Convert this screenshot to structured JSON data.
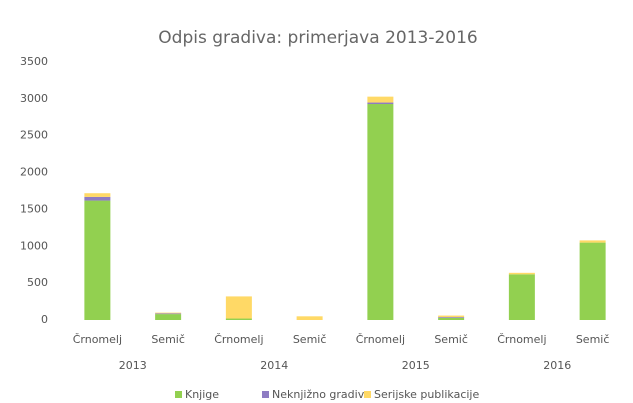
{
  "chart_data": {
    "type": "stacked_bar",
    "title": "Odpis gradiva: primerjava 2013-2016",
    "categories": [
      "Črnomelj",
      "Semič",
      "Črnomelj",
      "Semič",
      "Črnomelj",
      "Semič",
      "Črnomelj",
      "Semič"
    ],
    "groups": [
      "2013",
      "2014",
      "2015",
      "2016"
    ],
    "series": [
      {
        "name": "Knjige",
        "color": "#92d050",
        "values": [
          1620,
          80,
          20,
          0,
          2930,
          30,
          620,
          1050
        ]
      },
      {
        "name": "Neknjižno gradivo",
        "color": "#8e7cc3",
        "values": [
          50,
          10,
          0,
          0,
          20,
          10,
          0,
          0
        ]
      },
      {
        "name": "Serijske publikacije",
        "color": "#ffd966",
        "values": [
          50,
          10,
          300,
          50,
          80,
          20,
          20,
          30
        ]
      }
    ],
    "ylim": [
      0,
      3500
    ],
    "yticks": [
      0,
      500,
      1000,
      1500,
      2000,
      2500,
      3000,
      3500
    ],
    "grid": false,
    "legend": "bottom"
  }
}
